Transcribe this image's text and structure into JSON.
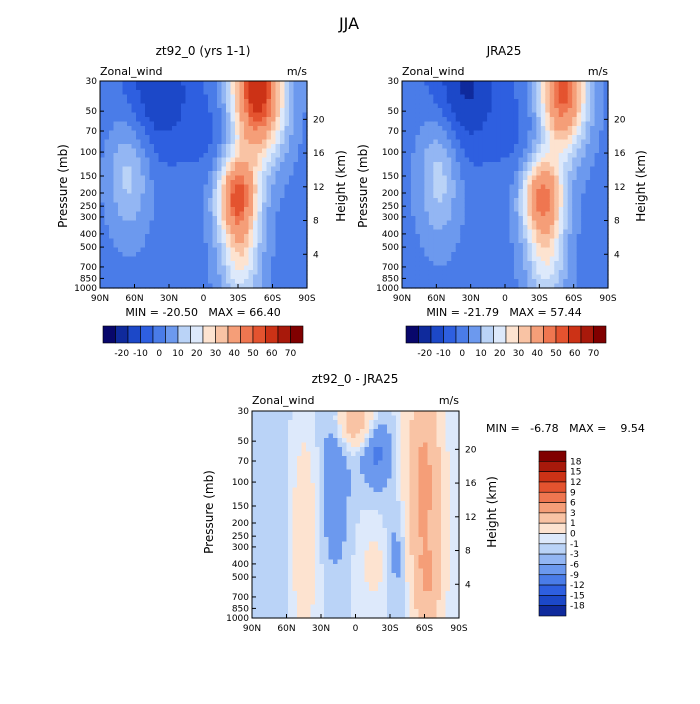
{
  "title": "JJA",
  "colors": {
    "blues": [
      "#08076b",
      "#0f2a9c",
      "#1c48c8",
      "#2e5fe0",
      "#4a7ce8",
      "#6c99ee",
      "#93b6f3",
      "#bad3f7",
      "#dde9fb"
    ],
    "reds": [
      "#fde3d0",
      "#f9c3a4",
      "#f59e78",
      "#ef7650",
      "#e4532f",
      "#cc3216",
      "#a8190b",
      "#800000"
    ]
  },
  "chart_data": [
    {
      "type": "heatmap",
      "title": "zt92_0 (yrs 1-1)",
      "field": "Zonal_wind",
      "units": "m/s",
      "x_tick_labels": [
        "90N",
        "60N",
        "30N",
        "0",
        "30S",
        "60S",
        "90S"
      ],
      "y_tick_labels": [
        "30",
        "50",
        "70",
        "100",
        "150",
        "200",
        "250",
        "300",
        "400",
        "500",
        "700",
        "850",
        "1000"
      ],
      "ylabel": "Pressure (mb)",
      "y2label": "Height (km)",
      "y2_tick_labels": [
        "20",
        "16",
        "12",
        "8",
        "4"
      ],
      "min": -20.5,
      "max": 66.4,
      "stats_label": "MIN = -20.50   MAX = 66.40",
      "colorbar_labels": [
        "-20",
        "-10",
        "0",
        "10",
        "20",
        "30",
        "40",
        "50",
        "60",
        "70"
      ]
    },
    {
      "type": "heatmap",
      "title": "JRA25",
      "field": "Zonal_wind",
      "units": "m/s",
      "x_tick_labels": [
        "90N",
        "60N",
        "30N",
        "0",
        "30S",
        "60S",
        "90S"
      ],
      "y_tick_labels": [
        "30",
        "50",
        "70",
        "100",
        "150",
        "200",
        "250",
        "300",
        "400",
        "500",
        "700",
        "850",
        "1000"
      ],
      "ylabel": "Pressure (mb)",
      "y2label": "Height (km)",
      "y2_tick_labels": [
        "20",
        "16",
        "12",
        "8",
        "4"
      ],
      "min": -21.79,
      "max": 57.44,
      "stats_label": "MIN = -21.79   MAX = 57.44",
      "colorbar_labels": [
        "-20",
        "-10",
        "0",
        "10",
        "20",
        "30",
        "40",
        "50",
        "60",
        "70"
      ]
    },
    {
      "type": "heatmap",
      "title": "zt92_0 - JRA25",
      "field": "Zonal_wind",
      "units": "m/s",
      "x_tick_labels": [
        "90N",
        "60N",
        "30N",
        "0",
        "30S",
        "60S",
        "90S"
      ],
      "y_tick_labels": [
        "30",
        "50",
        "70",
        "100",
        "150",
        "200",
        "250",
        "300",
        "400",
        "500",
        "700",
        "850",
        "1000"
      ],
      "ylabel": "Pressure (mb)",
      "y2label": "Height (km)",
      "y2_tick_labels": [
        "20",
        "16",
        "12",
        "8",
        "4"
      ],
      "min": -6.78,
      "max": 9.54,
      "stats_label": "MIN =   -6.78   MAX =    9.54",
      "colorbar_labels": [
        "18",
        "15",
        "12",
        "9",
        "6",
        "3",
        "1",
        "0",
        "-1",
        "-3",
        "-6",
        "-9",
        "-12",
        "-15",
        "-18"
      ]
    }
  ]
}
